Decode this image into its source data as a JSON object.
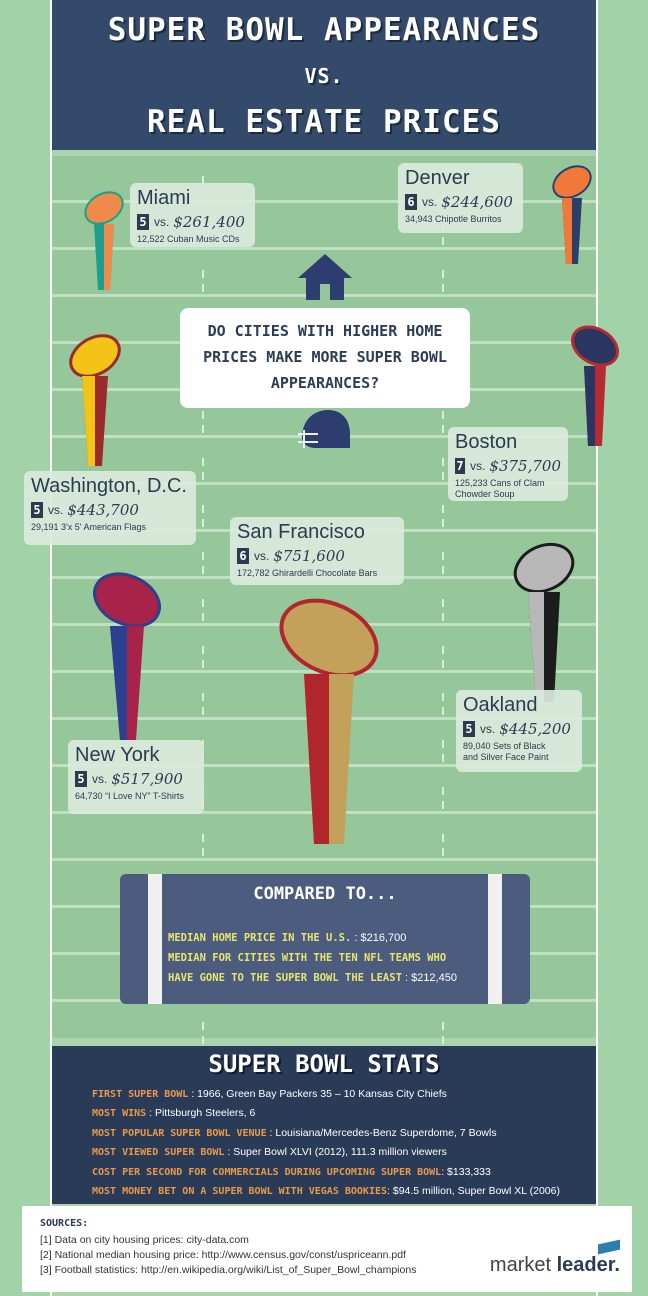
{
  "header": {
    "title_line1": "SUPER BOWL APPEARANCES",
    "vs": "VS.",
    "title_line2": "REAL ESTATE PRICES"
  },
  "question": {
    "line1": "DO CITIES WITH HIGHER HOME",
    "line2": "PRICES MAKE MORE SUPER BOWL",
    "line3": "APPEARANCES?"
  },
  "cities": {
    "miami": {
      "name": "Miami",
      "appearances": "5",
      "vs": "vs.",
      "price": "$261,400",
      "detail": "12,522 Cuban Music CDs"
    },
    "denver": {
      "name": "Denver",
      "appearances": "6",
      "vs": "vs.",
      "price": "$244,600",
      "detail": "34,943 Chipotle Burritos"
    },
    "boston": {
      "name": "Boston",
      "appearances": "7",
      "vs": "vs.",
      "price": "$375,700",
      "detail_line1": "125,233 Cans of Clam",
      "detail_line2": "Chowder Soup"
    },
    "washington": {
      "name": "Washington, D.C.",
      "appearances": "5",
      "vs": "vs.",
      "price": "$443,700",
      "detail": "29,191 3'x 5' American Flags"
    },
    "san_francisco": {
      "name": "San Francisco",
      "appearances": "6",
      "vs": "vs.",
      "price": "$751,600",
      "detail": "172,782 Ghirardelli Chocolate Bars"
    },
    "oakland": {
      "name": "Oakland",
      "appearances": "5",
      "vs": "vs.",
      "price": "$445,200",
      "detail_line1": "89,040 Sets of Black",
      "detail_line2": "and Silver Face Paint"
    },
    "new_york": {
      "name": "New York",
      "appearances": "5",
      "vs": "vs.",
      "price": "$517,900",
      "detail": "64,730 “I Love NY” T-Shirts"
    }
  },
  "trophy_colors": {
    "miami": [
      "#f08a4b",
      "#1f9e8e"
    ],
    "denver": [
      "#f0783a",
      "#2c3f6b"
    ],
    "washington": [
      "#f2c417",
      "#9a2a2c"
    ],
    "boston": [
      "#2a3561",
      "#b52a33"
    ],
    "san_francisco": [
      "#c4a15a",
      "#b1252c"
    ],
    "oakland": [
      "#b8b8b8",
      "#1c1c1c"
    ],
    "new_york": [
      "#a8234a",
      "#2d3f8f"
    ]
  },
  "compare": {
    "title": "COMPARED TO...",
    "line1_label": "MEDIAN HOME PRICE IN THE U.S.",
    "line1_sep": " : ",
    "line1_value": "$216,700",
    "line2_label": "MEDIAN FOR CITIES WITH THE TEN NFL TEAMS WHO",
    "line3_label": "HAVE GONE TO THE SUPER BOWL THE LEAST",
    "line3_sep": " : ",
    "line3_value": "$212,450"
  },
  "stats": {
    "title": "SUPER BOWL STATS",
    "items": [
      {
        "label": "FIRST SUPER BOWL",
        "value": "1966, Green Bay Packers 35 – 10 Kansas City Chiefs"
      },
      {
        "label": "MOST WINS",
        "value": "Pittsburgh Steelers, 6"
      },
      {
        "label": "MOST POPULAR SUPER BOWL VENUE",
        "value": "Louisiana/Mercedes-Benz Superdome, 7 Bowls"
      },
      {
        "label": "MOST VIEWED SUPER BOWL",
        "value": "Super Bowl XLVI (2012), 111.3 million viewers"
      },
      {
        "label": "COST PER SECOND FOR COMMERCIALS DURING UPCOMING SUPER BOWL",
        "value": "$133,333"
      },
      {
        "label": "MOST MONEY BET ON A SUPER BOWL WITH VEGAS BOOKIES",
        "value": "$94.5 million, Super Bowl XL (2006)"
      }
    ]
  },
  "sources": {
    "title": "SOURCES:",
    "items": [
      "[1] Data on city housing prices: city-data.com",
      "[2] National median housing price: http://www.census.gov/const/uspriceann.pdf",
      "[3] Football statistics: http://en.wikipedia.org/wiki/List_of_Super_Bowl_champions"
    ]
  },
  "logo": {
    "part1": "market ",
    "part2": "leader."
  }
}
